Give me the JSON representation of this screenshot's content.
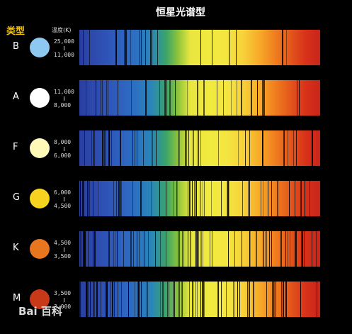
{
  "title": "恒星光谱型",
  "type_header": "类型",
  "temp_header": "温度(K)",
  "watermark": "Bai 百科",
  "rows": [
    {
      "letter": "B",
      "hi": "25,000",
      "lo": "11,000",
      "color": "#8ec8f0"
    },
    {
      "letter": "A",
      "hi": "11,000",
      "lo": "8,000",
      "color": "#ffffff"
    },
    {
      "letter": "F",
      "hi": "8,000",
      "lo": "6,000",
      "color": "#fff9b8"
    },
    {
      "letter": "G",
      "hi": "6,000",
      "lo": "4,500",
      "color": "#f7d21e"
    },
    {
      "letter": "K",
      "hi": "4,500",
      "lo": "3,500",
      "color": "#e8761e"
    },
    {
      "letter": "M",
      "hi": "3,500",
      "lo": "3,000",
      "color": "#c8391a"
    }
  ]
}
